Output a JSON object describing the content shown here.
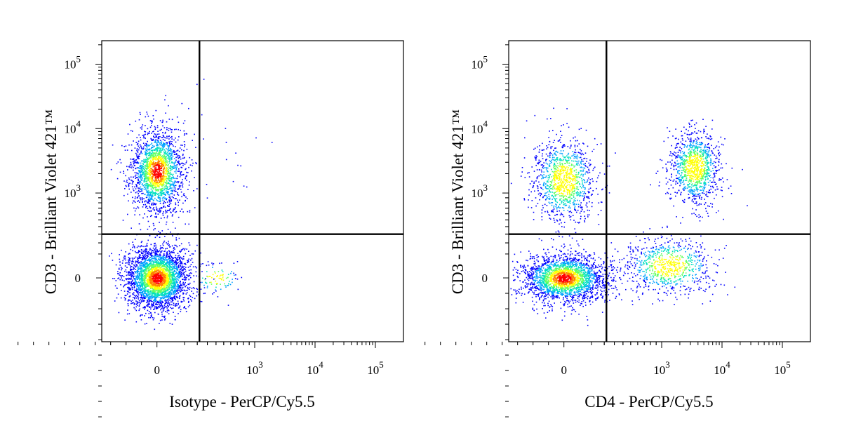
{
  "chart_data": [
    {
      "type": "scatter",
      "plot_style": "flow cytometry density dot plot (pseudocolor)",
      "xlabel": "Isotype - PerCP/Cy5.5",
      "ylabel": "CD3 - Brilliant Violet 421™",
      "x_scale": "biexponential",
      "y_scale": "biexponential",
      "x_ticks": [
        {
          "value": 0,
          "base": "0",
          "exp": ""
        },
        {
          "value": 1000,
          "base": "10",
          "exp": "3"
        },
        {
          "value": 10000,
          "base": "10",
          "exp": "4"
        },
        {
          "value": 100000,
          "base": "10",
          "exp": "5"
        }
      ],
      "y_ticks": [
        {
          "value": 0,
          "base": "0",
          "exp": ""
        },
        {
          "value": 1000,
          "base": "10",
          "exp": "3"
        },
        {
          "value": 10000,
          "base": "10",
          "exp": "4"
        },
        {
          "value": 100000,
          "base": "10",
          "exp": "5"
        }
      ],
      "quadrant_gate": {
        "x": 220,
        "y": 300
      },
      "populations": [
        {
          "name": "",
          "x_center": 0,
          "y_center": 2200,
          "events": 2000,
          "spread": "medium"
        },
        {
          "name": "",
          "x_center": 0,
          "y_center": 0,
          "events": 3200,
          "spread": "medium"
        },
        {
          "name": "",
          "x_center": 400,
          "y_center": 0,
          "events": 90,
          "spread": "small"
        },
        {
          "name": "",
          "x_center": 400,
          "y_center": 2500,
          "events": 25,
          "spread": "sparse"
        }
      ]
    },
    {
      "type": "scatter",
      "plot_style": "flow cytometry density dot plot (pseudocolor)",
      "xlabel": "CD4 - PerCP/Cy5.5",
      "ylabel": "CD3 - Brilliant Violet 421™",
      "x_scale": "biexponential",
      "y_scale": "biexponential",
      "x_ticks": [
        {
          "value": 0,
          "base": "0",
          "exp": ""
        },
        {
          "value": 1000,
          "base": "10",
          "exp": "3"
        },
        {
          "value": 10000,
          "base": "10",
          "exp": "4"
        },
        {
          "value": 100000,
          "base": "10",
          "exp": "5"
        }
      ],
      "y_ticks": [
        {
          "value": 0,
          "base": "0",
          "exp": ""
        },
        {
          "value": 1000,
          "base": "10",
          "exp": "3"
        },
        {
          "value": 10000,
          "base": "10",
          "exp": "4"
        },
        {
          "value": 100000,
          "base": "10",
          "exp": "5"
        }
      ],
      "quadrant_gate": {
        "x": 220,
        "y": 300
      },
      "populations": [
        {
          "name": "",
          "x_center": 0,
          "y_center": 1600,
          "events": 1100,
          "spread": "medium"
        },
        {
          "name": "",
          "x_center": 3500,
          "y_center": 2500,
          "events": 1100,
          "spread": "medium"
        },
        {
          "name": "",
          "x_center": 0,
          "y_center": 0,
          "events": 2400,
          "spread": "medium"
        },
        {
          "name": "",
          "x_center": 1300,
          "y_center": 30,
          "events": 800,
          "spread": "wide"
        }
      ]
    }
  ],
  "density_colors": [
    "#0000ff",
    "#00a0ff",
    "#00e0c0",
    "#60ff60",
    "#ffff00",
    "#ff8000",
    "#ff0000"
  ]
}
